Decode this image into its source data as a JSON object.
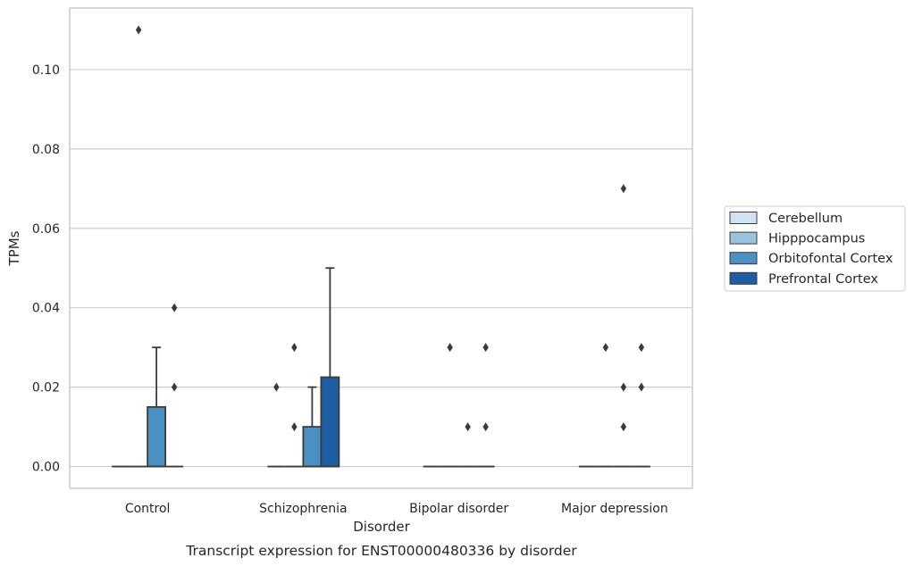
{
  "chart_data": {
    "type": "box",
    "title": "",
    "caption": "Transcript expression for ENST00000480336 by disorder",
    "xlabel": "Disorder",
    "ylabel": "TPMs",
    "ylim": [
      -0.0055,
      0.1155
    ],
    "yticks": [
      "0.00",
      "0.02",
      "0.04",
      "0.06",
      "0.08",
      "0.10"
    ],
    "grid": true,
    "legend_position": "right",
    "categories": [
      "Control",
      "Schizophrenia",
      "Bipolar disorder",
      "Major depression"
    ],
    "series": [
      {
        "name": "Cerebellum",
        "color": "#d2e2f2",
        "boxes": [
          {
            "q1": 0,
            "median": 0,
            "q3": 0,
            "whisker_low": 0,
            "whisker_high": 0,
            "outliers": []
          },
          {
            "q1": 0,
            "median": 0,
            "q3": 0,
            "whisker_low": 0,
            "whisker_high": 0,
            "outliers": [
              0.02
            ]
          },
          {
            "q1": 0,
            "median": 0,
            "q3": 0,
            "whisker_low": 0,
            "whisker_high": 0,
            "outliers": []
          },
          {
            "q1": 0,
            "median": 0,
            "q3": 0,
            "whisker_low": 0,
            "whisker_high": 0,
            "outliers": []
          }
        ]
      },
      {
        "name": "Hipppocampus",
        "color": "#9cc3de",
        "boxes": [
          {
            "q1": 0,
            "median": 0,
            "q3": 0,
            "whisker_low": 0,
            "whisker_high": 0,
            "outliers": [
              0.11
            ]
          },
          {
            "q1": 0,
            "median": 0,
            "q3": 0,
            "whisker_low": 0,
            "whisker_high": 0,
            "outliers": [
              0.03,
              0.01
            ]
          },
          {
            "q1": 0,
            "median": 0,
            "q3": 0,
            "whisker_low": 0,
            "whisker_high": 0,
            "outliers": [
              0.03
            ]
          },
          {
            "q1": 0,
            "median": 0,
            "q3": 0,
            "whisker_low": 0,
            "whisker_high": 0,
            "outliers": [
              0.03
            ]
          }
        ]
      },
      {
        "name": "Orbitofontal Cortex",
        "color": "#4a90c2",
        "boxes": [
          {
            "q1": 0,
            "median": 0,
            "q3": 0.015,
            "whisker_low": 0,
            "whisker_high": 0.03,
            "outliers": []
          },
          {
            "q1": 0,
            "median": 0,
            "q3": 0.01,
            "whisker_low": 0,
            "whisker_high": 0.02,
            "outliers": []
          },
          {
            "q1": 0,
            "median": 0,
            "q3": 0,
            "whisker_low": 0,
            "whisker_high": 0,
            "outliers": [
              0.01
            ]
          },
          {
            "q1": 0,
            "median": 0,
            "q3": 0,
            "whisker_low": 0,
            "whisker_high": 0,
            "outliers": [
              0.07,
              0.02,
              0.01
            ]
          }
        ]
      },
      {
        "name": "Prefrontal Cortex",
        "color": "#1f5ea3",
        "boxes": [
          {
            "q1": 0,
            "median": 0,
            "q3": 0,
            "whisker_low": 0,
            "whisker_high": 0,
            "outliers": [
              0.04,
              0.02
            ]
          },
          {
            "q1": 0,
            "median": 0,
            "q3": 0.0225,
            "whisker_low": 0,
            "whisker_high": 0.05,
            "outliers": []
          },
          {
            "q1": 0,
            "median": 0,
            "q3": 0,
            "whisker_low": 0,
            "whisker_high": 0,
            "outliers": [
              0.03,
              0.01
            ]
          },
          {
            "q1": 0,
            "median": 0,
            "q3": 0,
            "whisker_low": 0,
            "whisker_high": 0,
            "outliers": [
              0.03,
              0.02
            ]
          }
        ]
      }
    ]
  }
}
